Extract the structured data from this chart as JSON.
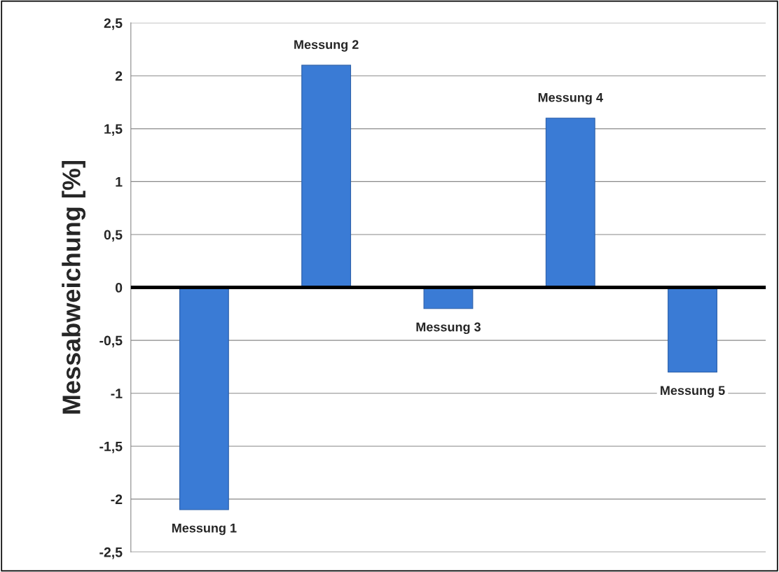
{
  "chart_data": {
    "type": "bar",
    "ylabel": "Messabweichung [%]",
    "categories": [
      "Messung 1",
      "Messung 2",
      "Messung 3",
      "Messung 4",
      "Messung 5"
    ],
    "values": [
      -2.1,
      2.1,
      -0.2,
      1.6,
      -0.8
    ],
    "color": "#3a7bd5",
    "ylim": [
      -2.5,
      2.5
    ],
    "yticks": [
      {
        "value": -2.5,
        "label": "-2,5"
      },
      -2,
      {
        "value": -1.5,
        "label": "-1,5"
      },
      -1,
      {
        "value": -0.5,
        "label": "-0,5"
      },
      0,
      {
        "value": 0.5,
        "label": "0,5"
      },
      1,
      {
        "value": 1.5,
        "label": "1,5"
      },
      2,
      {
        "value": 2.5,
        "label": "2,5"
      }
    ],
    "grid": "y",
    "ref_lines": [
      {
        "axis": "y",
        "value": 0,
        "color": "#000000",
        "line_style": "solid"
      }
    ]
  }
}
